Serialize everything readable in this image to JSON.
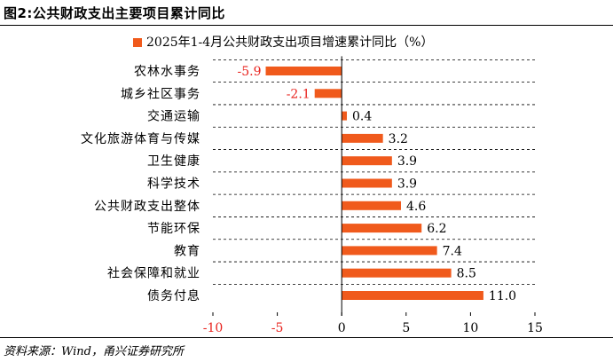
{
  "figure": {
    "title": "图2:公共财政支出主要项目累计同比",
    "source": "资料来源：Wind，甬兴证券研究所"
  },
  "colors": {
    "bar": "#f05a1c",
    "negative_label": "#e8231e",
    "text": "#000000",
    "grid": "#000000"
  },
  "chart_data": {
    "type": "bar",
    "orientation": "horizontal",
    "categories": [
      "农林水事务",
      "城乡社区事务",
      "交通运输",
      "文化旅游体育与传媒",
      "卫生健康",
      "科学技术",
      "公共财政支出整体",
      "节能环保",
      "教育",
      "社会保障和就业",
      "债务付息"
    ],
    "series": [
      {
        "name": "2025年1-4月公共财政支出项目增速累计同比（%）",
        "values": [
          -5.9,
          -2.1,
          0.4,
          3.2,
          3.9,
          3.9,
          4.6,
          6.2,
          7.4,
          8.5,
          11.0
        ],
        "labels": [
          "-5.9",
          "-2.1",
          "0.4",
          "3.2",
          "3.9",
          "3.9",
          "4.6",
          "6.2",
          "7.4",
          "8.5",
          "11.0"
        ]
      }
    ],
    "xlim": [
      -10,
      15
    ],
    "xticks": [
      -10,
      -5,
      0,
      5,
      10,
      15
    ],
    "xtick_labels": [
      "-10",
      "-5",
      "0",
      "5",
      "10",
      "15"
    ],
    "grid": "horizontal dashed",
    "legend": "top-center"
  }
}
